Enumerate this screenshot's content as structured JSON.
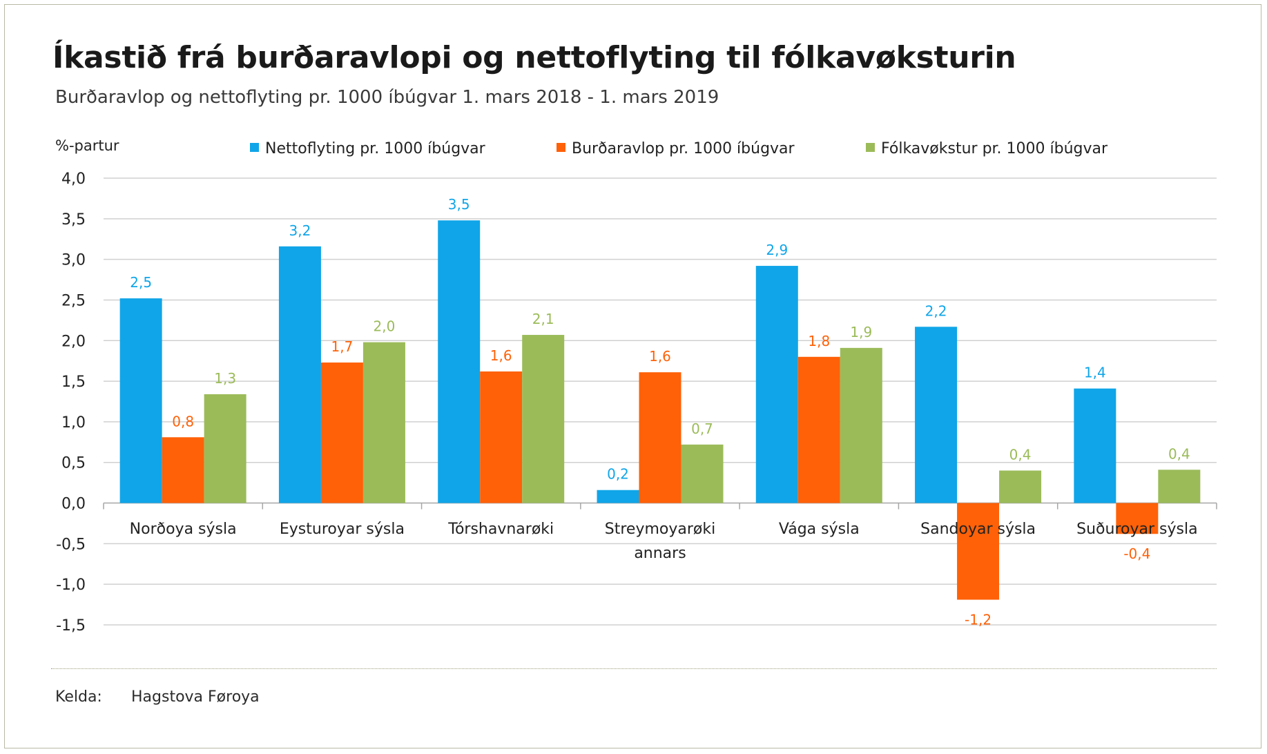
{
  "chart_data": {
    "type": "bar",
    "title": "Íkastið frá burðaravlopi og nettoflyting til fólkavøksturin",
    "subtitle": "Burðaravlop og nettoflyting pr. 1000 íbúgvar 1. mars 2018 - 1. mars 2019",
    "ylabel": "%-partur",
    "xlabel": "",
    "ylim": [
      -1.5,
      4.0
    ],
    "ytick_step": 0.5,
    "yticks": [
      "4,0",
      "3,5",
      "3,0",
      "2,5",
      "2,0",
      "1,5",
      "1,0",
      "0,5",
      "0,0",
      "-0,5",
      "-1,0",
      "-1,5"
    ],
    "grid": true,
    "legend_position": "top",
    "categories": [
      [
        "Norðoya sýsla"
      ],
      [
        "Eysturoyar sýsla"
      ],
      [
        "Tórshavnarøki"
      ],
      [
        "Streymoyarøki",
        "annars"
      ],
      [
        "Vága sýsla"
      ],
      [
        "Sandoyar sýsla"
      ],
      [
        "Suðuroyar sýsla"
      ]
    ],
    "series": [
      {
        "name": "Nettoflyting pr. 1000 íbúgvar",
        "color": "#10a5e8",
        "values": [
          2.52,
          3.16,
          3.48,
          0.16,
          2.92,
          2.17,
          1.41
        ],
        "labels": [
          "2,5",
          "3,2",
          "3,5",
          "0,2",
          "2,9",
          "2,2",
          "1,4"
        ]
      },
      {
        "name": "Burðaravlop pr. 1000 íbúgvar",
        "color": "#ff6108",
        "values": [
          0.81,
          1.73,
          1.62,
          1.61,
          1.8,
          -1.19,
          -0.38
        ],
        "labels": [
          "0,8",
          "1,7",
          "1,6",
          "1,6",
          "1,8",
          "-1,2",
          "-0,4"
        ]
      },
      {
        "name": "Fólkavøkstur pr. 1000 íbúgvar",
        "color": "#9bbb59",
        "values": [
          1.34,
          1.98,
          2.07,
          0.72,
          1.91,
          0.4,
          0.41
        ],
        "labels": [
          "1,3",
          "2,0",
          "2,1",
          "0,7",
          "1,9",
          "0,4",
          "0,4"
        ]
      }
    ]
  },
  "source": {
    "label": "Kelda:",
    "value": "Hagstova Føroya"
  },
  "colors": {
    "grid": "#d0d0d0",
    "axis": "#a6a6a6",
    "tick_text": "#222222",
    "frame": "#b9b9a4"
  }
}
